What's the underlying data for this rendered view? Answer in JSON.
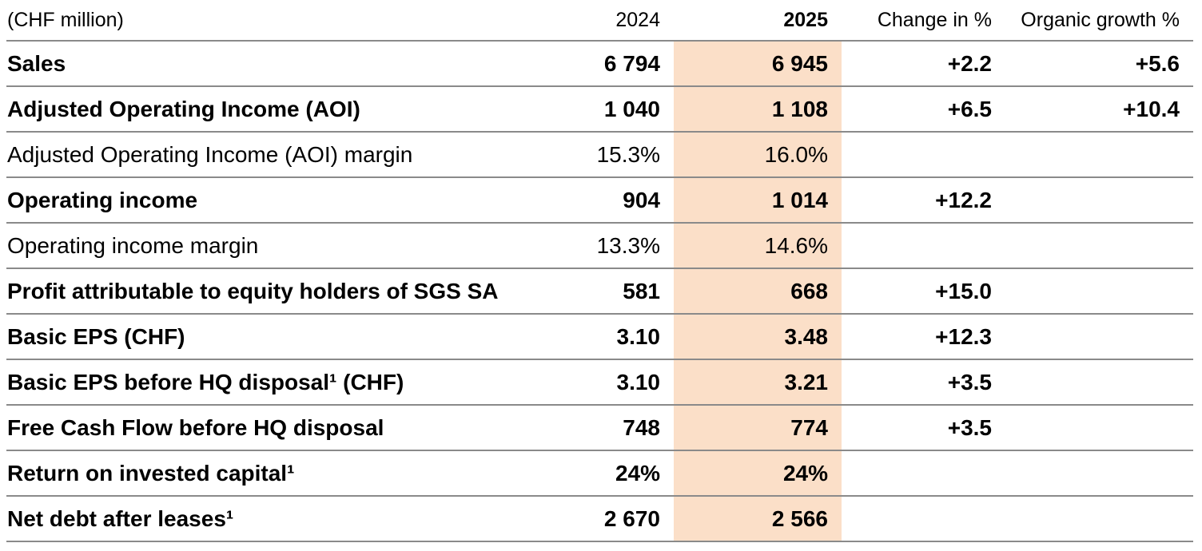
{
  "table": {
    "unit_label": "(CHF million)",
    "columns": [
      "2024",
      "2025",
      "Change in %",
      "Organic growth %"
    ],
    "highlight_color": "#FBDFC8",
    "rule_color": "#8a8a8a",
    "rows": [
      {
        "label": "Sales",
        "emphasis": true,
        "y2024": "6 794",
        "y2025": "6 945",
        "change": "+2.2",
        "organic": "+5.6"
      },
      {
        "label": "Adjusted Operating Income (AOI)",
        "emphasis": true,
        "y2024": "1 040",
        "y2025": "1 108",
        "change": "+6.5",
        "organic": "+10.4"
      },
      {
        "label": "Adjusted Operating Income (AOI) margin",
        "emphasis": false,
        "y2024": "15.3%",
        "y2025": "16.0%",
        "change": "",
        "organic": ""
      },
      {
        "label": "Operating income",
        "emphasis": true,
        "y2024": "904",
        "y2025": "1 014",
        "change": "+12.2",
        "organic": ""
      },
      {
        "label": "Operating income margin",
        "emphasis": false,
        "y2024": "13.3%",
        "y2025": "14.6%",
        "change": "",
        "organic": ""
      },
      {
        "label": "Profit attributable to equity holders of SGS SA",
        "emphasis": true,
        "y2024": "581",
        "y2025": "668",
        "change": "+15.0",
        "organic": ""
      },
      {
        "label": "Basic EPS (CHF)",
        "emphasis": true,
        "y2024": "3.10",
        "y2025": "3.48",
        "change": "+12.3",
        "organic": ""
      },
      {
        "label": "Basic EPS before HQ disposal¹ (CHF)",
        "emphasis": true,
        "y2024": "3.10",
        "y2025": "3.21",
        "change": "+3.5",
        "organic": ""
      },
      {
        "label": "Free Cash Flow before HQ disposal",
        "emphasis": true,
        "y2024": "748",
        "y2025": "774",
        "change": "+3.5",
        "organic": ""
      },
      {
        "label": "Return on invested capital¹",
        "emphasis": true,
        "y2024": "24%",
        "y2025": "24%",
        "change": "",
        "organic": ""
      },
      {
        "label": "Net debt after leases¹",
        "emphasis": true,
        "y2024": "2 670",
        "y2025": "2 566",
        "change": "",
        "organic": ""
      }
    ]
  }
}
